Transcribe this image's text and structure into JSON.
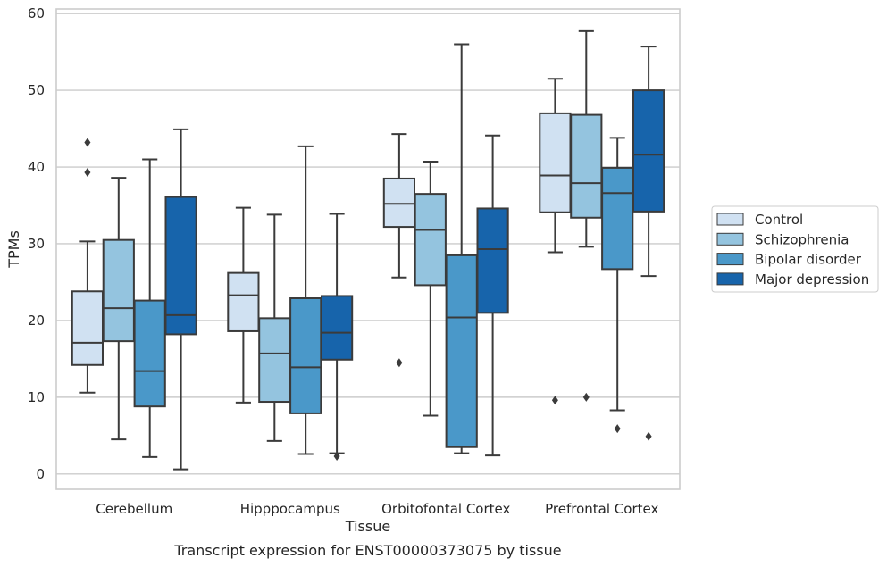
{
  "caption": "Transcript expression for ENST00000373075 by tissue",
  "chart_data": {
    "type": "box",
    "xlabel": "Tissue",
    "ylabel": "TPMs",
    "ylim": [
      -2,
      60.6
    ],
    "yticks": [
      0,
      10,
      20,
      30,
      40,
      50,
      60
    ],
    "grid": "horizontal",
    "legend_position": "right",
    "categories": [
      "Cerebellum",
      "Hipppocampus",
      "Orbitofontal Cortex",
      "Prefrontal Cortex"
    ],
    "series": [
      {
        "name": "Control",
        "color": "#d0e1f2",
        "boxes": [
          {
            "whislo": 10.6,
            "q1": 14.2,
            "med": 17.1,
            "q3": 23.8,
            "whishi": 30.3,
            "fliers": [
              39.3,
              43.2
            ]
          },
          {
            "whislo": 9.3,
            "q1": 18.6,
            "med": 23.3,
            "q3": 26.2,
            "whishi": 34.7,
            "fliers": []
          },
          {
            "whislo": 25.6,
            "q1": 32.2,
            "med": 35.2,
            "q3": 38.5,
            "whishi": 44.3,
            "fliers": [
              14.5
            ]
          },
          {
            "whislo": 28.9,
            "q1": 34.1,
            "med": 38.9,
            "q3": 47.0,
            "whishi": 51.5,
            "fliers": [
              9.6
            ]
          }
        ]
      },
      {
        "name": "Schizophrenia",
        "color": "#94c4df",
        "boxes": [
          {
            "whislo": 4.5,
            "q1": 17.3,
            "med": 21.6,
            "q3": 30.5,
            "whishi": 38.6,
            "fliers": []
          },
          {
            "whislo": 4.3,
            "q1": 9.4,
            "med": 15.7,
            "q3": 20.3,
            "whishi": 33.8,
            "fliers": []
          },
          {
            "whislo": 7.6,
            "q1": 24.6,
            "med": 31.8,
            "q3": 36.5,
            "whishi": 40.7,
            "fliers": []
          },
          {
            "whislo": 29.6,
            "q1": 33.4,
            "med": 37.9,
            "q3": 46.8,
            "whishi": 57.7,
            "fliers": [
              10.0
            ]
          }
        ]
      },
      {
        "name": "Bipolar disorder",
        "color": "#4a98c9",
        "boxes": [
          {
            "whislo": 2.2,
            "q1": 8.8,
            "med": 13.4,
            "q3": 22.6,
            "whishi": 41.0,
            "fliers": []
          },
          {
            "whislo": 2.6,
            "q1": 7.9,
            "med": 13.9,
            "q3": 22.9,
            "whishi": 42.7,
            "fliers": []
          },
          {
            "whislo": 2.7,
            "q1": 3.5,
            "med": 20.4,
            "q3": 28.5,
            "whishi": 56.0,
            "fliers": []
          },
          {
            "whislo": 8.3,
            "q1": 26.7,
            "med": 36.6,
            "q3": 39.9,
            "whishi": 43.8,
            "fliers": [
              5.9
            ]
          }
        ]
      },
      {
        "name": "Major depression",
        "color": "#1764ab",
        "boxes": [
          {
            "whislo": 0.6,
            "q1": 18.2,
            "med": 20.7,
            "q3": 36.1,
            "whishi": 44.9,
            "fliers": []
          },
          {
            "whislo": 2.7,
            "q1": 14.9,
            "med": 18.4,
            "q3": 23.2,
            "whishi": 33.9,
            "fliers": [
              2.3
            ]
          },
          {
            "whislo": 2.4,
            "q1": 21.0,
            "med": 29.3,
            "q3": 34.6,
            "whishi": 44.1,
            "fliers": []
          },
          {
            "whislo": 25.8,
            "q1": 34.2,
            "med": 41.6,
            "q3": 50.0,
            "whishi": 55.7,
            "fliers": [
              4.9
            ]
          }
        ]
      }
    ]
  }
}
